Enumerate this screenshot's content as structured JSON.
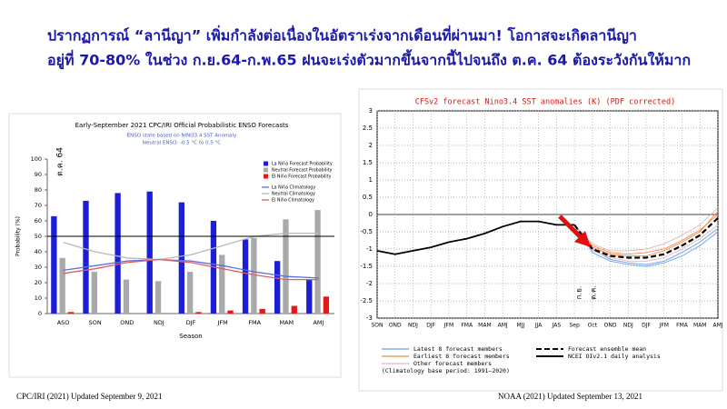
{
  "header": {
    "line1": "ปรากฏการณ์ “ลานีญา” เพิ่มกำลังต่อเนื่องในอัตราเร่งจากเดือนที่ผ่านมา! โอกาสจะเกิดลานีญา",
    "line2": "อยู่ที่ 70-80% ในช่วง ก.ย.64-ก.พ.65 ฝนจะเร่งตัวมากขึ้นจากนี้ไปจนถึง ต.ค. 64 ต้องระวังกันให้มาก"
  },
  "sources": [
    "CPC/IRI (2021) Updated September 9, 2021",
    "NOAA (2021) Updated September 13, 2021"
  ],
  "chart_data": [
    {
      "type": "bar",
      "title": "Early-September 2021 CPC/IRI Official Probabilistic ENSO Forecasts",
      "subtitle": [
        "ENSO state based on NINO3.4 SST Anomaly",
        "Neutral ENSO: -0.5 °C to 0.5 °C"
      ],
      "annotation": "ต.ค. 64",
      "x_label": "Season",
      "y_label": "Probability (%)",
      "categories": [
        "ASO",
        "SON",
        "OND",
        "NDJ",
        "DJF",
        "JFM",
        "FMA",
        "MAM",
        "AMJ"
      ],
      "series": [
        {
          "name": "La Niña Forecast Probability",
          "color": "#1c1fd6",
          "style": "bar",
          "values": [
            63,
            73,
            78,
            79,
            72,
            60,
            48,
            34,
            22
          ]
        },
        {
          "name": "Neutral Forecast Probability",
          "color": "#a9a9a9",
          "style": "bar",
          "values": [
            36,
            27,
            22,
            21,
            27,
            38,
            49,
            61,
            67
          ]
        },
        {
          "name": "El Niño Forecast Probability",
          "color": "#e01b1b",
          "style": "bar",
          "values": [
            1,
            0,
            0,
            0,
            1,
            2,
            3,
            5,
            11
          ]
        },
        {
          "name": "La Niña Climatology",
          "color": "#5b6ee6",
          "style": "line",
          "values": [
            28,
            31,
            34,
            35,
            34,
            31,
            27,
            24,
            23
          ]
        },
        {
          "name": "Neutral Climatology",
          "color": "#b8b8b8",
          "style": "line",
          "values": [
            46,
            40,
            36,
            35,
            38,
            44,
            50,
            52,
            52
          ]
        },
        {
          "name": "El Niño Climatology",
          "color": "#e06060",
          "style": "line",
          "values": [
            26,
            29,
            33,
            35,
            33,
            29,
            25,
            22,
            22
          ]
        }
      ],
      "reference_line": 50,
      "ylim": [
        0,
        100
      ],
      "yticks": [
        0,
        10,
        20,
        30,
        40,
        50,
        60,
        70,
        80,
        90,
        100
      ]
    },
    {
      "type": "line",
      "title": "CFSv2 forecast Nino3.4 SST anomalies (K) (PDF corrected)",
      "annotations": [
        "ก.ย.",
        "ต.ค."
      ],
      "note": "(Climatology base period: 1991–2020)",
      "categories": [
        "SON",
        "OND",
        "NDJ",
        "DJF",
        "JFM",
        "FMA",
        "MAM",
        "AMJ",
        "MJJ",
        "JJA",
        "JAS",
        "Sep",
        "Oct",
        "OND",
        "NDJ",
        "DJF",
        "JFM",
        "FMA",
        "MAM",
        "AMJ"
      ],
      "series": [
        {
          "name": "Latest 8 forecast members",
          "color": "#6d9eeb",
          "members": [
            [
              null,
              null,
              null,
              null,
              null,
              null,
              null,
              null,
              null,
              null,
              null,
              -0.3,
              -1.1,
              -1.35,
              -1.45,
              -1.5,
              -1.4,
              -1.2,
              -0.9,
              -0.5
            ],
            [
              null,
              null,
              null,
              null,
              null,
              null,
              null,
              null,
              null,
              null,
              null,
              -0.3,
              -1.0,
              -1.3,
              -1.4,
              -1.45,
              -1.35,
              -1.1,
              -0.8,
              -0.4
            ]
          ]
        },
        {
          "name": "Earliest 8 forecast members",
          "color": "#f08a4b",
          "members": [
            [
              null,
              null,
              null,
              null,
              null,
              null,
              null,
              null,
              null,
              null,
              null,
              -0.3,
              -0.9,
              -1.1,
              -1.15,
              -1.1,
              -1.0,
              -0.75,
              -0.45,
              0.0
            ],
            [
              null,
              null,
              null,
              null,
              null,
              null,
              null,
              null,
              null,
              null,
              null,
              -0.3,
              -0.95,
              -1.15,
              -1.2,
              -1.2,
              -1.05,
              -0.8,
              -0.5,
              0.1
            ]
          ]
        },
        {
          "name": "Other forecast members",
          "color": "#e8b4b4",
          "members": [
            [
              null,
              null,
              null,
              null,
              null,
              null,
              null,
              null,
              null,
              null,
              null,
              -0.3,
              -0.85,
              -1.05,
              -1.05,
              -1.0,
              -0.85,
              -0.6,
              -0.3,
              0.2
            ],
            [
              null,
              null,
              null,
              null,
              null,
              null,
              null,
              null,
              null,
              null,
              null,
              -0.3,
              -1.05,
              -1.25,
              -1.35,
              -1.35,
              -1.25,
              -1.0,
              -0.7,
              -0.3
            ]
          ]
        },
        {
          "name": "Forecast ensemble mean",
          "color": "#000000",
          "dashed": true,
          "values": [
            null,
            null,
            null,
            null,
            null,
            null,
            null,
            null,
            null,
            null,
            null,
            -0.3,
            -1.0,
            -1.2,
            -1.25,
            -1.25,
            -1.15,
            -0.9,
            -0.6,
            -0.1
          ]
        },
        {
          "name": "NCEI OIv2.1 daily analysis",
          "color": "#000000",
          "dashed": false,
          "values": [
            -1.05,
            -1.15,
            -1.05,
            -0.95,
            -0.8,
            -0.7,
            -0.55,
            -0.35,
            -0.2,
            -0.2,
            -0.3,
            -0.3,
            null,
            null,
            null,
            null,
            null,
            null,
            null,
            null
          ]
        }
      ],
      "grid": true,
      "ylim": [
        -3,
        3
      ],
      "yticks": [
        -3,
        -2.5,
        -2,
        -1.5,
        -1,
        -0.5,
        0,
        0.5,
        1,
        1.5,
        2,
        2.5,
        3
      ]
    }
  ]
}
